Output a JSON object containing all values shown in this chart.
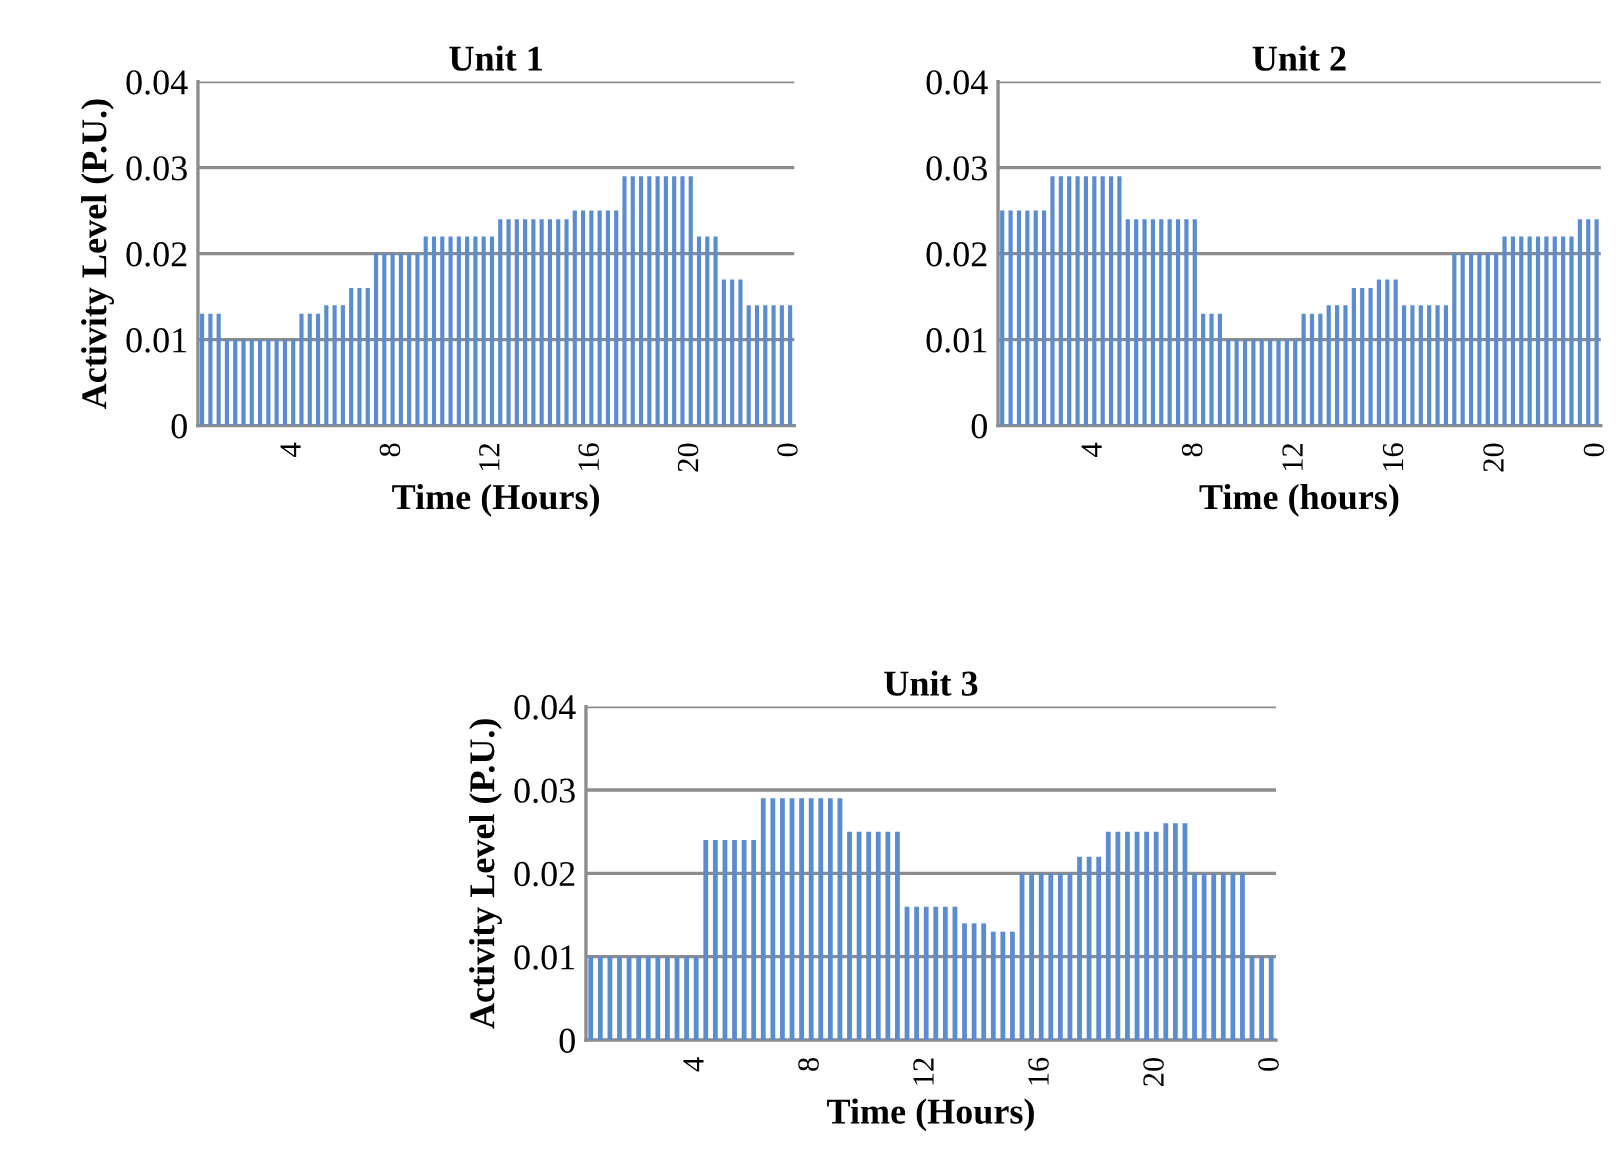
{
  "chart_data": [
    {
      "type": "bar",
      "title": "Unit 1",
      "xlabel": "Time (Hours)",
      "ylabel": "Activity Level (P.U.)",
      "categories": [
        null,
        null,
        null,
        null,
        null,
        null,
        null,
        null,
        null,
        null,
        null,
        "4",
        null,
        null,
        null,
        null,
        null,
        null,
        null,
        null,
        null,
        null,
        null,
        "8",
        null,
        null,
        null,
        null,
        null,
        null,
        null,
        null,
        null,
        null,
        null,
        "12",
        null,
        null,
        null,
        null,
        null,
        null,
        null,
        null,
        null,
        null,
        null,
        "16",
        null,
        null,
        null,
        null,
        null,
        null,
        null,
        null,
        null,
        null,
        null,
        "20",
        null,
        null,
        null,
        null,
        null,
        null,
        null,
        null,
        null,
        null,
        null,
        "0"
      ],
      "values": [
        0.013,
        0.013,
        0.013,
        0.01,
        0.01,
        0.01,
        0.01,
        0.01,
        0.01,
        0.01,
        0.01,
        0.01,
        0.013,
        0.013,
        0.013,
        0.014,
        0.014,
        0.014,
        0.016,
        0.016,
        0.016,
        0.02,
        0.02,
        0.02,
        0.02,
        0.02,
        0.02,
        0.022,
        0.022,
        0.022,
        0.022,
        0.022,
        0.022,
        0.022,
        0.022,
        0.022,
        0.024,
        0.024,
        0.024,
        0.024,
        0.024,
        0.024,
        0.024,
        0.024,
        0.024,
        0.025,
        0.025,
        0.025,
        0.025,
        0.025,
        0.025,
        0.029,
        0.029,
        0.029,
        0.029,
        0.029,
        0.029,
        0.029,
        0.029,
        0.029,
        0.022,
        0.022,
        0.022,
        0.017,
        0.017,
        0.017,
        0.014,
        0.014,
        0.014,
        0.014,
        0.014,
        0.014
      ],
      "color": "#5b8bd0",
      "ylim": [
        0,
        0.04
      ],
      "yticks": [
        0,
        0.01,
        0.02,
        0.03,
        0.04
      ],
      "grid": "y"
    },
    {
      "type": "bar",
      "title": "Unit 2",
      "xlabel": "Time (hours)",
      "categories": [
        null,
        null,
        null,
        null,
        null,
        null,
        null,
        null,
        null,
        null,
        null,
        "4",
        null,
        null,
        null,
        null,
        null,
        null,
        null,
        null,
        null,
        null,
        null,
        "8",
        null,
        null,
        null,
        null,
        null,
        null,
        null,
        null,
        null,
        null,
        null,
        "12",
        null,
        null,
        null,
        null,
        null,
        null,
        null,
        null,
        null,
        null,
        null,
        "16",
        null,
        null,
        null,
        null,
        null,
        null,
        null,
        null,
        null,
        null,
        null,
        "20",
        null,
        null,
        null,
        null,
        null,
        null,
        null,
        null,
        null,
        null,
        null,
        "0"
      ],
      "values": [
        0.025,
        0.025,
        0.025,
        0.025,
        0.025,
        0.025,
        0.029,
        0.029,
        0.029,
        0.029,
        0.029,
        0.029,
        0.029,
        0.029,
        0.029,
        0.024,
        0.024,
        0.024,
        0.024,
        0.024,
        0.024,
        0.024,
        0.024,
        0.024,
        0.013,
        0.013,
        0.013,
        0.01,
        0.01,
        0.01,
        0.01,
        0.01,
        0.01,
        0.01,
        0.01,
        0.01,
        0.013,
        0.013,
        0.013,
        0.014,
        0.014,
        0.014,
        0.016,
        0.016,
        0.016,
        0.017,
        0.017,
        0.017,
        0.014,
        0.014,
        0.014,
        0.014,
        0.014,
        0.014,
        0.02,
        0.02,
        0.02,
        0.02,
        0.02,
        0.02,
        0.022,
        0.022,
        0.022,
        0.022,
        0.022,
        0.022,
        0.022,
        0.022,
        0.022,
        0.024,
        0.024,
        0.024
      ],
      "color": "#5b8bd0",
      "ylim": [
        0,
        0.04
      ],
      "yticks": [
        0,
        0.01,
        0.02,
        0.03,
        0.04
      ],
      "grid": "y"
    },
    {
      "type": "bar",
      "title": "Unit 3",
      "xlabel": "Time (Hours)",
      "ylabel": "Activity Level (P.U.)",
      "categories": [
        null,
        null,
        null,
        null,
        null,
        null,
        null,
        null,
        null,
        null,
        null,
        "4",
        null,
        null,
        null,
        null,
        null,
        null,
        null,
        null,
        null,
        null,
        null,
        "8",
        null,
        null,
        null,
        null,
        null,
        null,
        null,
        null,
        null,
        null,
        null,
        "12",
        null,
        null,
        null,
        null,
        null,
        null,
        null,
        null,
        null,
        null,
        null,
        "16",
        null,
        null,
        null,
        null,
        null,
        null,
        null,
        null,
        null,
        null,
        null,
        "20",
        null,
        null,
        null,
        null,
        null,
        null,
        null,
        null,
        null,
        null,
        null,
        "0"
      ],
      "values": [
        0.01,
        0.01,
        0.01,
        0.01,
        0.01,
        0.01,
        0.01,
        0.01,
        0.01,
        0.01,
        0.01,
        0.01,
        0.024,
        0.024,
        0.024,
        0.024,
        0.024,
        0.024,
        0.029,
        0.029,
        0.029,
        0.029,
        0.029,
        0.029,
        0.029,
        0.029,
        0.029,
        0.025,
        0.025,
        0.025,
        0.025,
        0.025,
        0.025,
        0.016,
        0.016,
        0.016,
        0.016,
        0.016,
        0.016,
        0.014,
        0.014,
        0.014,
        0.013,
        0.013,
        0.013,
        0.02,
        0.02,
        0.02,
        0.02,
        0.02,
        0.02,
        0.022,
        0.022,
        0.022,
        0.025,
        0.025,
        0.025,
        0.025,
        0.025,
        0.025,
        0.026,
        0.026,
        0.026,
        0.02,
        0.02,
        0.02,
        0.02,
        0.02,
        0.02,
        0.01,
        0.01,
        0.01
      ],
      "color": "#5b8bd0",
      "ylim": [
        0,
        0.04
      ],
      "yticks": [
        0,
        0.01,
        0.02,
        0.03,
        0.04
      ],
      "grid": "y"
    }
  ]
}
